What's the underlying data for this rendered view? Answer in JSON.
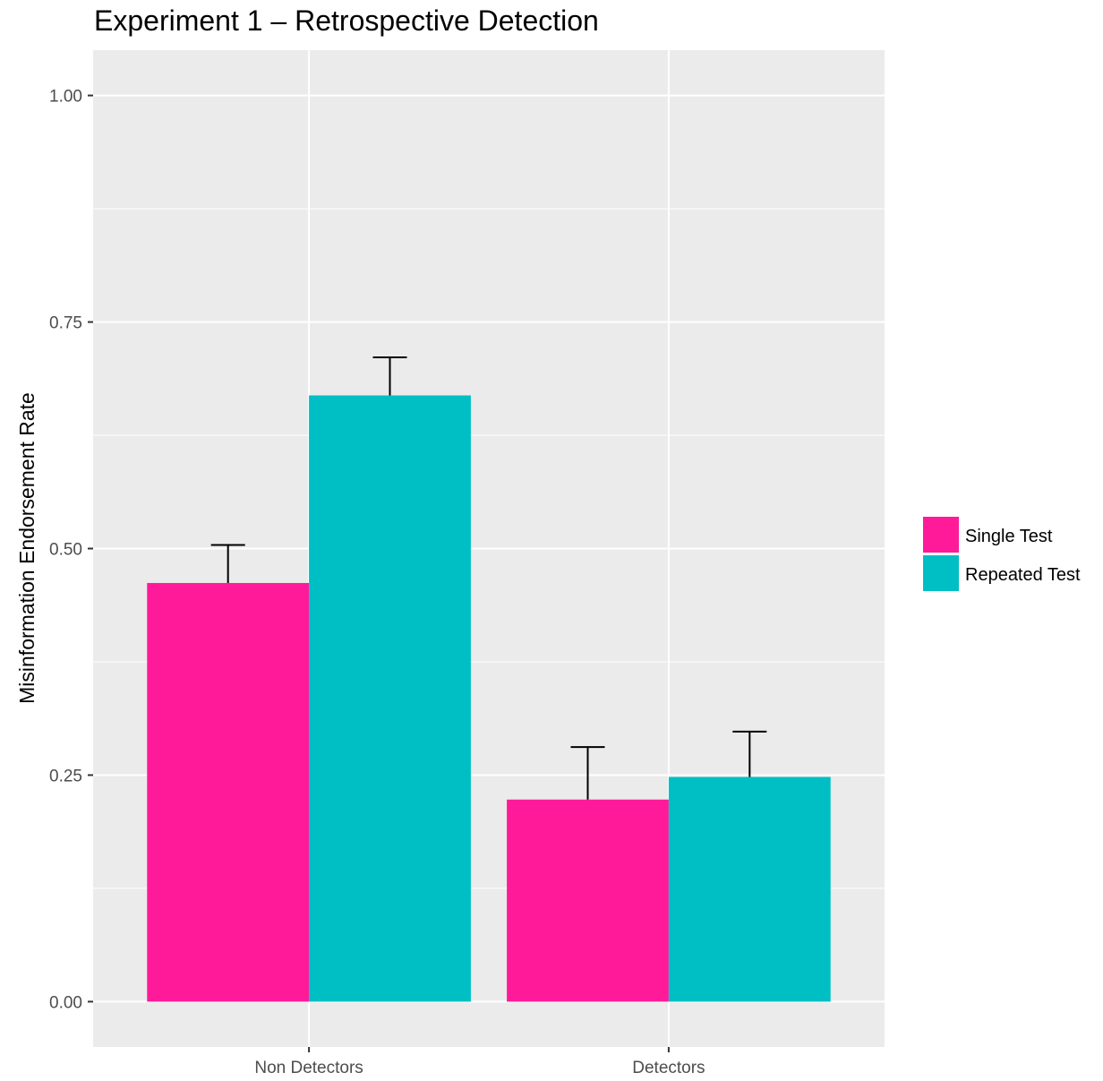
{
  "chart_data": {
    "type": "bar",
    "title": "Experiment 1 – Retrospective Detection",
    "xlabel": "",
    "ylabel": "Misinformation Endorsement Rate",
    "categories": [
      "Non Detectors",
      "Detectors"
    ],
    "ylim": [
      -0.05,
      1.05
    ],
    "yticks": [
      0,
      0.25,
      0.5,
      0.75,
      1.0
    ],
    "ytick_labels": [
      "0.00",
      "0.25",
      "0.50",
      "0.75",
      "1.00"
    ],
    "grid": true,
    "legend_position": "right",
    "series": [
      {
        "name": "Single Test",
        "color": "#FF1A9A",
        "values": [
          0.462,
          0.223
        ],
        "error_upper": [
          0.504,
          0.281
        ]
      },
      {
        "name": "Repeated Test",
        "color": "#00BFC4",
        "values": [
          0.669,
          0.248
        ],
        "error_upper": [
          0.711,
          0.298
        ]
      }
    ]
  }
}
